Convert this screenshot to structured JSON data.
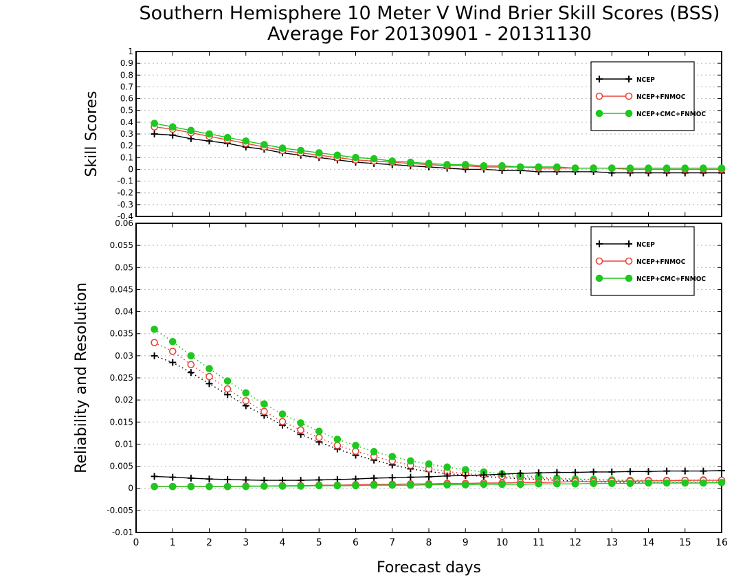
{
  "title_line1": "Southern Hemisphere 10 Meter V Wind Brier Skill Scores (BSS)",
  "title_line2": "Average For 20130901 - 20131130",
  "xlabel": "Forecast days",
  "colors": {
    "NCEP": "#000000",
    "NCEP+FNMOC": "#e8463c",
    "NCEP+CMC+FNMOC": "#1ec81e"
  },
  "chart_data": [
    {
      "type": "line",
      "ylabel": "Skill Scores",
      "xlim": [
        0,
        16
      ],
      "ylim": [
        -0.4,
        1
      ],
      "grid": true,
      "legend_position": "top-right",
      "x_ticks": [
        0,
        1,
        2,
        3,
        4,
        5,
        6,
        7,
        8,
        9,
        10,
        11,
        12,
        13,
        14,
        15,
        16
      ],
      "y_ticks": [
        -0.4,
        -0.3,
        -0.2,
        -0.1,
        0,
        0.1,
        0.2,
        0.3,
        0.4,
        0.5,
        0.6,
        0.7,
        0.8,
        0.9,
        1
      ],
      "y_tick_labels": [
        "-0.4",
        "-0.3",
        "-0.2",
        "-0.1",
        "0",
        "0.1",
        "0.2",
        "0.3",
        "0.4",
        "0.5",
        "0.6",
        "0.7",
        "0.8",
        "0.9",
        "1"
      ],
      "x": [
        0.5,
        1,
        1.5,
        2,
        2.5,
        3,
        3.5,
        4,
        4.5,
        5,
        5.5,
        6,
        6.5,
        7,
        7.5,
        8,
        8.5,
        9,
        9.5,
        10,
        10.5,
        11,
        11.5,
        12,
        12.5,
        13,
        13.5,
        14,
        14.5,
        15,
        15.5,
        16
      ],
      "series": [
        {
          "name": "NCEP",
          "marker": "plus",
          "line": "solid",
          "values": [
            0.3,
            0.29,
            0.26,
            0.24,
            0.22,
            0.19,
            0.17,
            0.14,
            0.12,
            0.1,
            0.08,
            0.06,
            0.05,
            0.04,
            0.03,
            0.02,
            0.01,
            0.0,
            0.0,
            -0.01,
            -0.01,
            -0.02,
            -0.02,
            -0.02,
            -0.02,
            -0.03,
            -0.03,
            -0.03,
            -0.03,
            -0.03,
            -0.03,
            -0.03
          ]
        },
        {
          "name": "NCEP+FNMOC",
          "marker": "open-circle",
          "line": "solid",
          "values": [
            0.36,
            0.34,
            0.31,
            0.28,
            0.25,
            0.22,
            0.19,
            0.16,
            0.14,
            0.12,
            0.1,
            0.08,
            0.07,
            0.06,
            0.05,
            0.04,
            0.03,
            0.03,
            0.02,
            0.02,
            0.02,
            0.01,
            0.01,
            0.01,
            0.01,
            0.01,
            0.0,
            0.0,
            0.0,
            0.0,
            0.0,
            0.0
          ]
        },
        {
          "name": "NCEP+CMC+FNMOC",
          "marker": "filled-circle",
          "line": "solid",
          "values": [
            0.39,
            0.36,
            0.33,
            0.3,
            0.27,
            0.24,
            0.21,
            0.18,
            0.16,
            0.14,
            0.12,
            0.1,
            0.09,
            0.07,
            0.06,
            0.05,
            0.04,
            0.04,
            0.03,
            0.03,
            0.02,
            0.02,
            0.02,
            0.01,
            0.01,
            0.01,
            0.01,
            0.01,
            0.01,
            0.01,
            0.01,
            0.01
          ]
        }
      ]
    },
    {
      "type": "line",
      "ylabel": "Reliability and Resolution",
      "xlim": [
        0,
        16
      ],
      "ylim": [
        -0.01,
        0.06
      ],
      "grid": true,
      "legend_position": "top-right",
      "x_ticks": [
        0,
        1,
        2,
        3,
        4,
        5,
        6,
        7,
        8,
        9,
        10,
        11,
        12,
        13,
        14,
        15,
        16
      ],
      "y_ticks": [
        -0.01,
        -0.005,
        0,
        0.005,
        0.01,
        0.015,
        0.02,
        0.025,
        0.03,
        0.035,
        0.04,
        0.045,
        0.05,
        0.055,
        0.06
      ],
      "y_tick_labels": [
        "-0.01",
        "-0.005",
        "0",
        "0.005",
        "0.01",
        "0.015",
        "0.02",
        "0.025",
        "0.03",
        "0.035",
        "0.04",
        "0.045",
        "0.05",
        "0.055",
        "0.06"
      ],
      "x": [
        0.5,
        1,
        1.5,
        2,
        2.5,
        3,
        3.5,
        4,
        4.5,
        5,
        5.5,
        6,
        6.5,
        7,
        7.5,
        8,
        8.5,
        9,
        9.5,
        10,
        10.5,
        11,
        11.5,
        12,
        12.5,
        13,
        13.5,
        14,
        14.5,
        15,
        15.5,
        16
      ],
      "series": [
        {
          "name": "NCEP",
          "role": "resolution",
          "marker": "plus",
          "line": "dotted",
          "values": [
            0.03,
            0.0285,
            0.0262,
            0.0237,
            0.0212,
            0.0187,
            0.0165,
            0.0143,
            0.0122,
            0.0105,
            0.0089,
            0.0075,
            0.0064,
            0.0053,
            0.0044,
            0.0038,
            0.0033,
            0.003,
            0.0027,
            0.0024,
            0.0022,
            0.002,
            0.0018,
            0.0017,
            0.0015,
            0.0014,
            0.0014,
            0.0013,
            0.0013,
            0.0013,
            0.0013,
            0.0012
          ]
        },
        {
          "name": "NCEP+FNMOC",
          "role": "resolution",
          "marker": "open-circle",
          "line": "dotted",
          "values": [
            0.033,
            0.031,
            0.028,
            0.0253,
            0.0225,
            0.0198,
            0.0174,
            0.0151,
            0.0132,
            0.0115,
            0.0097,
            0.0084,
            0.0072,
            0.0062,
            0.0052,
            0.0044,
            0.0038,
            0.0033,
            0.0031,
            0.0027,
            0.0025,
            0.0023,
            0.0021,
            0.002,
            0.0019,
            0.0018,
            0.0018,
            0.0018,
            0.0018,
            0.0018,
            0.0019,
            0.0018
          ]
        },
        {
          "name": "NCEP+CMC+FNMOC",
          "role": "resolution",
          "marker": "filled-circle",
          "line": "dotted",
          "values": [
            0.036,
            0.0332,
            0.03,
            0.0271,
            0.0243,
            0.0216,
            0.0191,
            0.0168,
            0.0148,
            0.0129,
            0.0111,
            0.0097,
            0.0083,
            0.0072,
            0.0062,
            0.0055,
            0.0048,
            0.0042,
            0.0037,
            0.0033,
            0.0029,
            0.0026,
            0.0023,
            0.0021,
            0.002,
            0.0019,
            0.0018,
            0.0017,
            0.0017,
            0.0016,
            0.0016,
            0.0015
          ]
        },
        {
          "name": "NCEP",
          "role": "reliability",
          "marker": "plus",
          "line": "solid",
          "values": [
            0.0027,
            0.0025,
            0.0023,
            0.0021,
            0.002,
            0.0019,
            0.0018,
            0.0018,
            0.0018,
            0.0019,
            0.002,
            0.0021,
            0.0023,
            0.0024,
            0.0025,
            0.0026,
            0.0028,
            0.0029,
            0.003,
            0.0032,
            0.0034,
            0.0035,
            0.0036,
            0.0036,
            0.0037,
            0.0037,
            0.0038,
            0.0038,
            0.0039,
            0.0039,
            0.0039,
            0.004
          ]
        },
        {
          "name": "NCEP+FNMOC",
          "role": "reliability",
          "marker": "open-circle",
          "line": "solid",
          "values": [
            0.0004,
            0.0004,
            0.0004,
            0.0004,
            0.0004,
            0.0005,
            0.0005,
            0.0006,
            0.0006,
            0.0007,
            0.0007,
            0.0008,
            0.0009,
            0.0009,
            0.001,
            0.001,
            0.0011,
            0.0011,
            0.0012,
            0.0012,
            0.0013,
            0.0013,
            0.0014,
            0.0015,
            0.0015,
            0.0016,
            0.0016,
            0.0017,
            0.0017,
            0.0018,
            0.0018,
            0.0018
          ]
        },
        {
          "name": "NCEP+CMC+FNMOC",
          "role": "reliability",
          "marker": "filled-circle",
          "line": "solid",
          "values": [
            0.0004,
            0.0004,
            0.0004,
            0.0004,
            0.0004,
            0.0004,
            0.0005,
            0.0005,
            0.0005,
            0.0006,
            0.0006,
            0.0006,
            0.0007,
            0.0007,
            0.0007,
            0.0008,
            0.0008,
            0.0008,
            0.0009,
            0.0009,
            0.0009,
            0.001,
            0.001,
            0.001,
            0.0011,
            0.0011,
            0.0011,
            0.0012,
            0.0012,
            0.0012,
            0.0012,
            0.0013
          ]
        }
      ]
    }
  ]
}
